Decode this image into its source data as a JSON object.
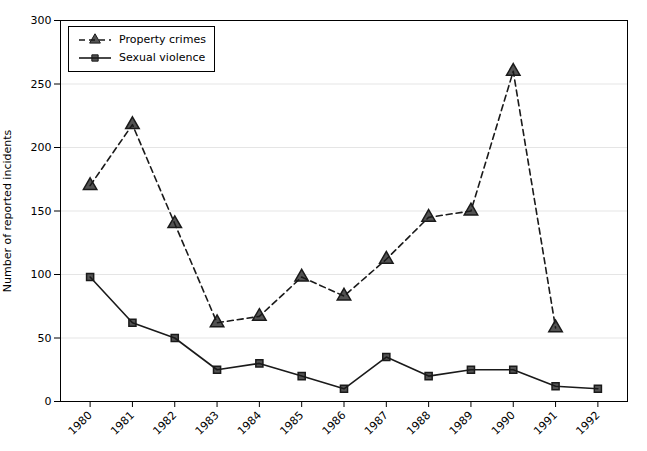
{
  "chart_data": {
    "type": "line",
    "x": [
      1980,
      1981,
      1982,
      1983,
      1984,
      1985,
      1986,
      1987,
      1988,
      1989,
      1990,
      1991,
      1992
    ],
    "series": [
      {
        "name": "Property crimes",
        "color": "#1a1a1a",
        "marker": "triangle",
        "line_style": "dashed",
        "values": [
          170,
          218,
          140,
          62,
          67,
          98,
          83,
          112,
          145,
          150,
          260,
          58,
          null
        ]
      },
      {
        "name": "Sexual violence",
        "color": "#1a1a1a",
        "marker": "square",
        "line_style": "solid",
        "values": [
          98,
          62,
          50,
          25,
          30,
          20,
          10,
          35,
          20,
          25,
          25,
          12,
          10
        ]
      }
    ],
    "ylabel": "Number of reported incidents",
    "xlim": [
      1979.3,
      1992.7
    ],
    "xticks": [
      1980,
      1981,
      1982,
      1983,
      1984,
      1985,
      1986,
      1987,
      1988,
      1989,
      1990,
      1991,
      1992
    ],
    "ylim": [
      0,
      300
    ],
    "yticks": [
      0,
      50,
      100,
      150,
      200,
      250,
      300
    ],
    "grid": true,
    "legend": "upper left"
  }
}
